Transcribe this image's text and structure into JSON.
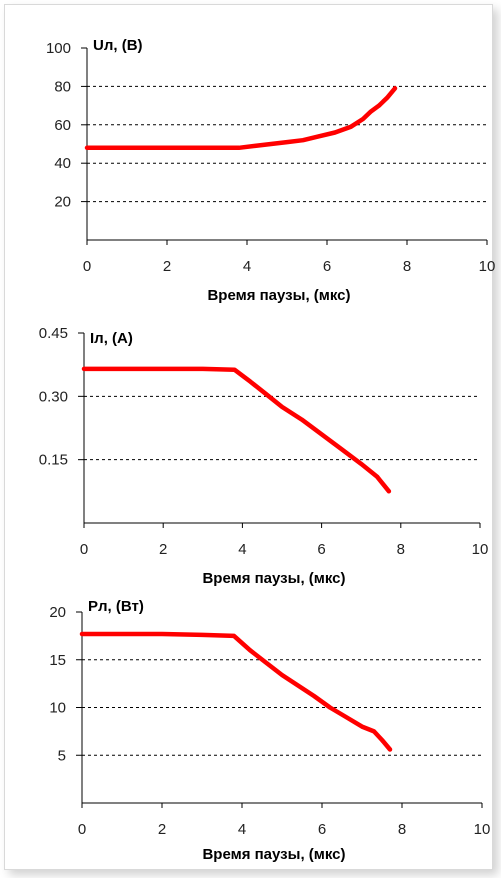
{
  "colors": {
    "series": "#ff0000",
    "axis": "#000000",
    "grid": "#000000"
  },
  "chart_data": [
    {
      "type": "line",
      "ylabel": "Uл, (В)",
      "xlabel": "Время паузы, (мкс)",
      "xlim": [
        0,
        10
      ],
      "ylim": [
        0,
        100
      ],
      "x_ticks": [
        "0",
        "2",
        "4",
        "6",
        "8",
        "10"
      ],
      "y_ticks": [
        "20",
        "40",
        "60",
        "80",
        "100"
      ],
      "grid": "horizontal dashed",
      "series": [
        {
          "x": [
            0,
            1,
            2,
            3,
            3.8,
            4.2,
            4.6,
            5.0,
            5.4,
            5.8,
            6.2,
            6.6,
            6.9,
            7.1,
            7.3,
            7.5,
            7.7
          ],
          "y": [
            48,
            48,
            48,
            48,
            48,
            49,
            50,
            51,
            52,
            54,
            56,
            59,
            63,
            67,
            70,
            74,
            79
          ]
        }
      ]
    },
    {
      "type": "line",
      "ylabel": "Iл, (А)",
      "xlabel": "Время паузы, (мкс)",
      "xlim": [
        0,
        10
      ],
      "ylim": [
        0,
        0.45
      ],
      "x_ticks": [
        "0",
        "2",
        "4",
        "6",
        "8",
        "10"
      ],
      "y_ticks": [
        "0.15",
        "0.30",
        "0.45"
      ],
      "grid": "horizontal dashed",
      "series": [
        {
          "x": [
            0,
            1,
            2,
            3,
            3.8,
            4.2,
            4.6,
            5.0,
            5.5,
            6.0,
            6.5,
            7.0,
            7.4,
            7.7
          ],
          "y": [
            0.365,
            0.365,
            0.365,
            0.365,
            0.363,
            0.335,
            0.305,
            0.275,
            0.245,
            0.21,
            0.175,
            0.14,
            0.11,
            0.075
          ]
        }
      ]
    },
    {
      "type": "line",
      "ylabel": "Pл, (Вт)",
      "xlabel": "Время паузы, (мкс)",
      "xlim": [
        0,
        10
      ],
      "ylim": [
        0,
        20
      ],
      "x_ticks": [
        "0",
        "2",
        "4",
        "6",
        "8",
        "10"
      ],
      "y_ticks": [
        "5",
        "10",
        "15",
        "20"
      ],
      "grid": "horizontal dashed",
      "series": [
        {
          "x": [
            0,
            1,
            2,
            3,
            3.8,
            4.2,
            4.6,
            5.0,
            5.4,
            5.8,
            6.2,
            6.6,
            7.0,
            7.3,
            7.5,
            7.7
          ],
          "y": [
            17.7,
            17.7,
            17.7,
            17.6,
            17.5,
            16.0,
            14.7,
            13.4,
            12.3,
            11.2,
            10.0,
            9.0,
            8.0,
            7.5,
            6.6,
            5.6
          ]
        }
      ]
    }
  ]
}
